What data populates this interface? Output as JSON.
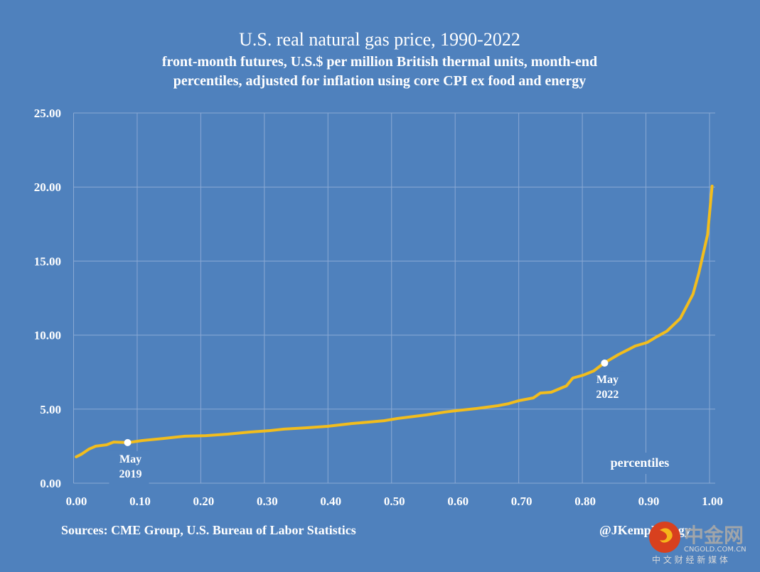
{
  "chart_data": {
    "type": "line",
    "title": "U.S. real natural gas price, 1990-2022",
    "subtitle_lines": [
      "front-month futures, U.S.$ per million British thermal units, month-end",
      "percentiles, adjusted for inflation using core CPI ex food and energy"
    ],
    "xlabel": "percentiles",
    "ylabel": "",
    "xlim": [
      0,
      1
    ],
    "ylim": [
      0,
      25
    ],
    "grid": true,
    "x_ticks": [
      "0.00",
      "0.10",
      "0.20",
      "0.30",
      "0.40",
      "0.50",
      "0.60",
      "0.70",
      "0.80",
      "0.90",
      "1.00"
    ],
    "y_ticks": [
      "0.00",
      "5.00",
      "10.00",
      "15.00",
      "20.00",
      "25.00"
    ],
    "series": [
      {
        "name": "real natural gas price percentile",
        "color": "#f2bd1d",
        "x": [
          0.004,
          0.013,
          0.024,
          0.035,
          0.052,
          0.063,
          0.086,
          0.108,
          0.141,
          0.175,
          0.208,
          0.242,
          0.276,
          0.309,
          0.331,
          0.365,
          0.399,
          0.438,
          0.466,
          0.488,
          0.51,
          0.555,
          0.583,
          0.6,
          0.633,
          0.667,
          0.684,
          0.7,
          0.723,
          0.734,
          0.751,
          0.767,
          0.775,
          0.785,
          0.801,
          0.818,
          0.834,
          0.857,
          0.883,
          0.902,
          0.915,
          0.933,
          0.954,
          0.974,
          0.983,
          0.997,
          1.004
        ],
        "values": [
          1.78,
          1.97,
          2.3,
          2.5,
          2.59,
          2.78,
          2.74,
          2.88,
          3.02,
          3.17,
          3.21,
          3.31,
          3.45,
          3.55,
          3.65,
          3.74,
          3.84,
          4.03,
          4.13,
          4.22,
          4.37,
          4.61,
          4.8,
          4.89,
          5.04,
          5.23,
          5.37,
          5.57,
          5.76,
          6.09,
          6.14,
          6.43,
          6.57,
          7.1,
          7.29,
          7.58,
          8.11,
          8.69,
          9.26,
          9.5,
          9.84,
          10.27,
          11.13,
          12.76,
          14.16,
          16.79,
          20.06
        ]
      }
    ],
    "annotations": [
      {
        "label_lines": [
          "May",
          "2019"
        ],
        "x": 0.085,
        "y": 2.74
      },
      {
        "label_lines": [
          "May",
          "2022"
        ],
        "x": 0.835,
        "y": 8.11
      }
    ],
    "source": "Sources: CME Group, U.S. Bureau of Labor Statistics",
    "credit": "@JKempEnergy"
  },
  "watermark": {
    "name": "中金网",
    "domain": "CNGOLD.COM.CN",
    "tagline": "中 文 财 经 新 媒 体"
  }
}
